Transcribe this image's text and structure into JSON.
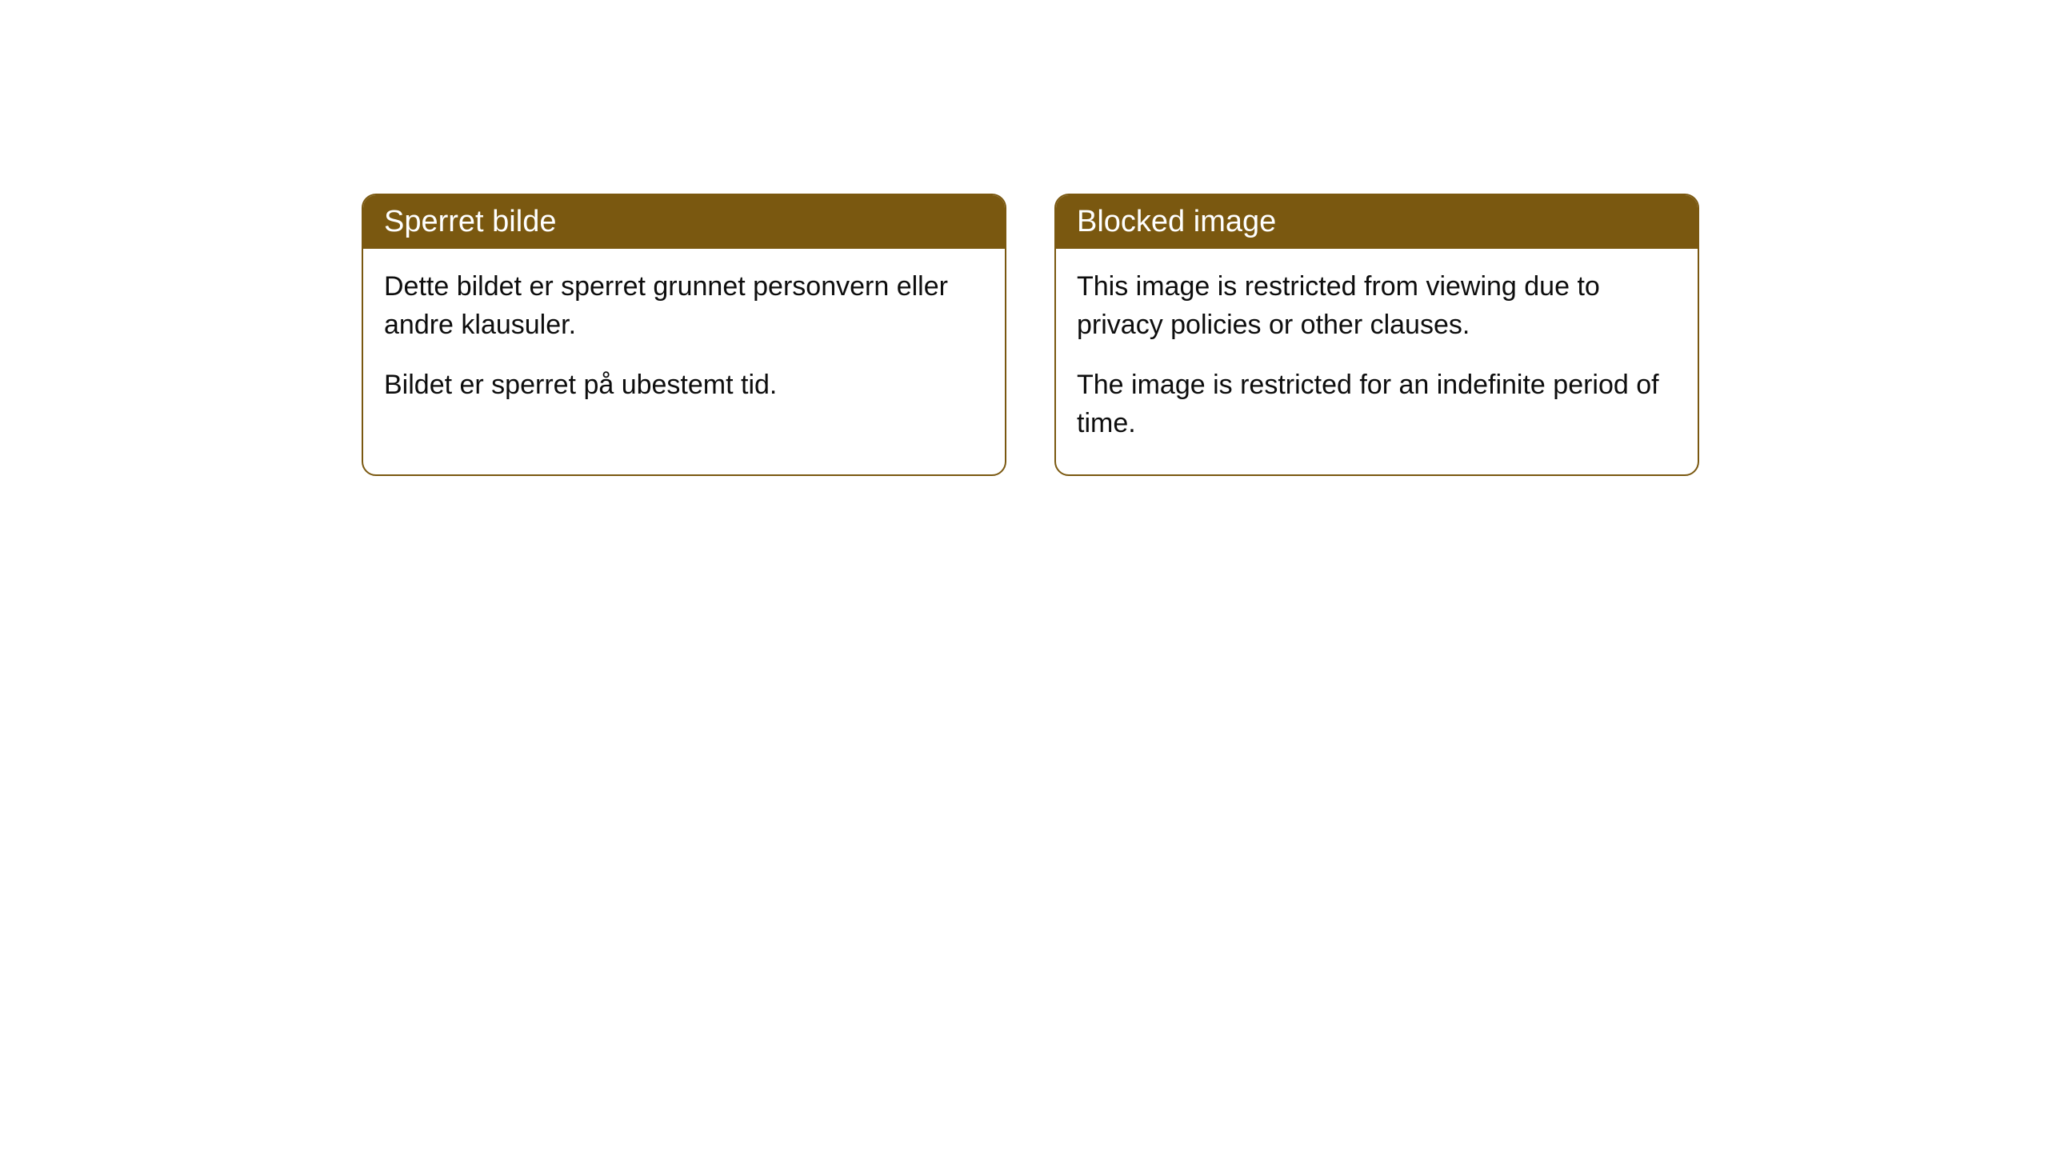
{
  "styles": {
    "header_background": "#7a5810",
    "header_text_color": "#ffffff",
    "border_color": "#7a5810",
    "body_text_color": "#0d0d0d",
    "card_background": "#ffffff",
    "page_background": "#ffffff",
    "border_radius": 18,
    "header_fontsize": 38,
    "body_fontsize": 34
  },
  "cards": {
    "norwegian": {
      "title": "Sperret bilde",
      "paragraph1": "Dette bildet er sperret grunnet personvern eller andre klausuler.",
      "paragraph2": "Bildet er sperret på ubestemt tid."
    },
    "english": {
      "title": "Blocked image",
      "paragraph1": "This image is restricted from viewing due to privacy policies or other clauses.",
      "paragraph2": "The image is restricted for an indefinite period of time."
    }
  }
}
